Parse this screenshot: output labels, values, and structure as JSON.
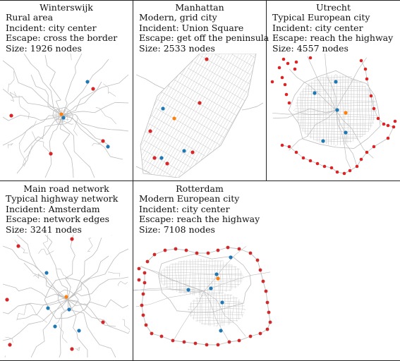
{
  "panels": [
    {
      "title": "Winterswijk",
      "lines": [
        "Rural area",
        "Incident: city center",
        "Escape: cross the border",
        "Size: 1926 nodes"
      ]
    },
    {
      "title": "Manhattan",
      "lines": [
        "Modern, grid city",
        "Incident: Union Square",
        "Escape: get off the peninsula",
        "Size: 2533 nodes"
      ]
    },
    {
      "title": "Utrecht",
      "lines": [
        "Typical European city",
        "Incident: city center",
        "Escape: reach the highway",
        "Size: 4557 nodes"
      ]
    },
    {
      "title": "Main road network",
      "lines": [
        "Typical highway network",
        "Incident: Amsterdam",
        "Escape: network edges",
        "Size: 3241 nodes"
      ]
    },
    {
      "title": "Rotterdam",
      "lines": [
        "Modern European city",
        "Incident: city center",
        "Escape: reach the highway",
        "Size: 7108 nodes"
      ]
    }
  ],
  "colors": {
    "road": "#bdbdbd",
    "exit": "#d62728",
    "unit": "#1f77b4",
    "incident": "#ff7f0e"
  }
}
